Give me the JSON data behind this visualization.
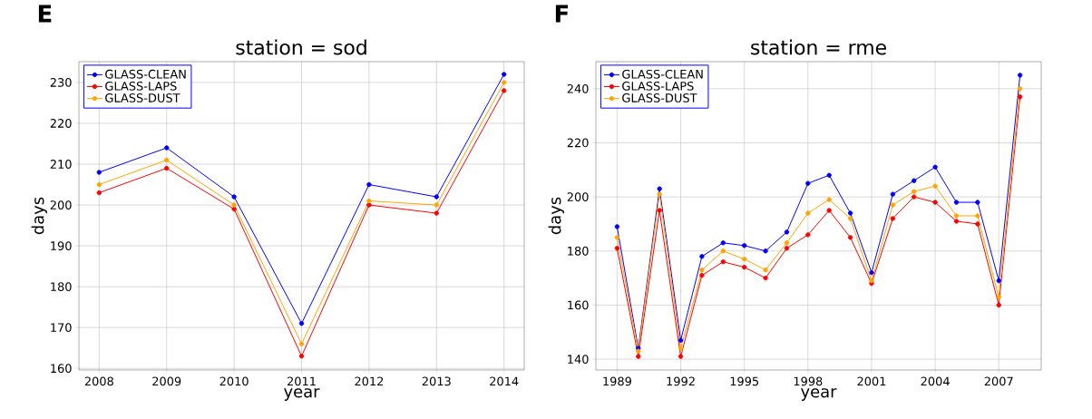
{
  "chart_data": [
    {
      "type": "line",
      "title": "station = sod",
      "xlabel": "year",
      "ylabel": "days",
      "annotations": [
        "E"
      ],
      "x": [
        2008,
        2009,
        2010,
        2011,
        2012,
        2013,
        2014
      ],
      "series": [
        {
          "name": "GLASS-CLEAN",
          "color": "#0000ff",
          "values": [
            208,
            214,
            202,
            171,
            205,
            202,
            232
          ]
        },
        {
          "name": "GLASS-LAPS",
          "color": "#ff0000",
          "values": [
            203,
            209,
            199,
            163,
            200,
            198,
            228
          ]
        },
        {
          "name": "GLASS-DUST",
          "color": "#ffa500",
          "values": [
            205,
            211,
            200,
            166,
            201,
            200,
            230
          ]
        }
      ],
      "xlim": [
        2007.7,
        2014.3
      ],
      "ylim": [
        159.6,
        235.1
      ],
      "xticks": [
        2008,
        2009,
        2010,
        2011,
        2012,
        2013,
        2014
      ],
      "yticks": [
        160,
        170,
        180,
        190,
        200,
        210,
        220,
        230
      ],
      "grid": true,
      "legend": "top left",
      "marker": "circle",
      "line_style": "solid"
    },
    {
      "type": "line",
      "title": "station = rme",
      "xlabel": "year",
      "ylabel": "days",
      "annotations": [
        "F"
      ],
      "x": [
        1989,
        1990,
        1991,
        1992,
        1993,
        1994,
        1995,
        1996,
        1997,
        1998,
        1999,
        2000,
        2001,
        2002,
        2003,
        2004,
        2005,
        2006,
        2007,
        2008
      ],
      "series": [
        {
          "name": "GLASS-CLEAN",
          "color": "#0000ff",
          "values": [
            189,
            144,
            203,
            147,
            178,
            183,
            182,
            180,
            187,
            205,
            208,
            194,
            172,
            201,
            206,
            211,
            198,
            198,
            169,
            245
          ]
        },
        {
          "name": "GLASS-LAPS",
          "color": "#ff0000",
          "values": [
            181,
            141,
            195,
            141,
            171,
            176,
            174,
            170,
            181,
            186,
            195,
            185,
            168,
            192,
            200,
            198,
            191,
            190,
            160,
            237
          ]
        },
        {
          "name": "GLASS-DUST",
          "color": "#ffa500",
          "values": [
            185,
            143,
            201,
            144,
            173,
            180,
            177,
            173,
            183,
            194,
            199,
            192,
            169,
            197,
            202,
            204,
            193,
            193,
            163,
            240
          ]
        }
      ],
      "xlim": [
        1988.0,
        2009.0
      ],
      "ylim": [
        136,
        250
      ],
      "xticks": [
        1989,
        1992,
        1995,
        1998,
        2001,
        2004,
        2007
      ],
      "yticks": [
        140,
        160,
        180,
        200,
        220,
        240
      ],
      "grid": true,
      "legend": "top left",
      "marker": "circle",
      "line_style": "solid"
    }
  ]
}
